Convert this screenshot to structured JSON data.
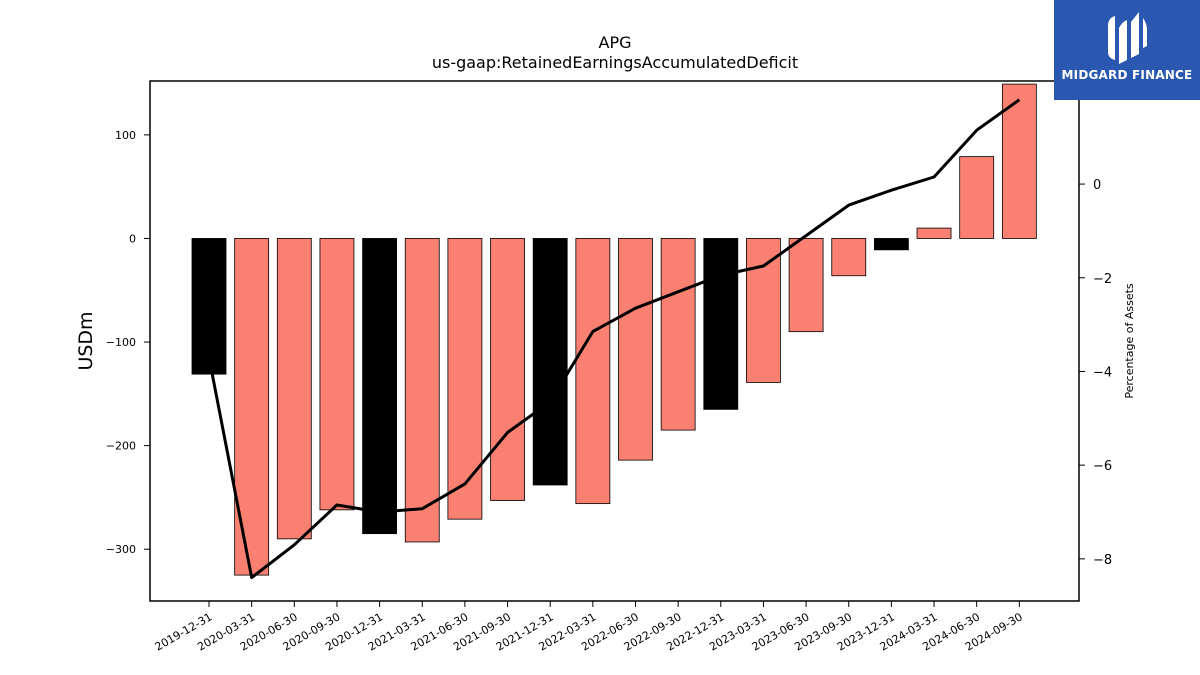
{
  "chart_data": {
    "type": "bar",
    "title": "APG",
    "subtitle": "us-gaap:RetainedEarningsAccumulatedDeficit",
    "ylabel": "USDm",
    "y2label": "Percentage of Assets",
    "ylim": [
      -350,
      152
    ],
    "y2lim": [
      -8.9,
      2.2
    ],
    "yticks": [
      100,
      0,
      -100,
      -200,
      -300
    ],
    "y2ticks": [
      0,
      -2,
      -4,
      -6,
      -8
    ],
    "categories": [
      "2019-12-31",
      "2020-03-31",
      "2020-06-30",
      "2020-09-30",
      "2020-12-31",
      "2021-03-31",
      "2021-06-30",
      "2021-09-30",
      "2021-12-31",
      "2022-03-31",
      "2022-06-30",
      "2022-09-30",
      "2022-12-31",
      "2023-03-31",
      "2023-06-30",
      "2023-09-30",
      "2023-12-31",
      "2024-03-31",
      "2024-06-30",
      "2024-09-30"
    ],
    "series": [
      {
        "kind": "bar",
        "values": [
          -131,
          -325,
          -290,
          -262,
          -285,
          -293,
          -271,
          -253,
          -238,
          -256,
          -214,
          -185,
          -165,
          -139,
          -90,
          -36,
          -11,
          10,
          79,
          149
        ],
        "colors": [
          "#000000",
          "#fa8072",
          "#fa8072",
          "#fa8072",
          "#000000",
          "#fa8072",
          "#fa8072",
          "#fa8072",
          "#000000",
          "#fa8072",
          "#fa8072",
          "#fa8072",
          "#000000",
          "#fa8072",
          "#fa8072",
          "#fa8072",
          "#000000",
          "#fa8072",
          "#fa8072",
          "#fa8072"
        ]
      },
      {
        "kind": "line",
        "axis": "right",
        "color": "#000000",
        "values": [
          -3.7,
          -8.4,
          -7.7,
          -6.85,
          -7.0,
          -6.93,
          -6.4,
          -5.3,
          -4.65,
          -3.15,
          -2.65,
          -2.3,
          -1.95,
          -1.75,
          -1.1,
          -0.45,
          -0.13,
          0.15,
          1.15,
          1.8
        ]
      }
    ],
    "grid": false,
    "legend": "none"
  },
  "logo": {
    "brand": "MIDGARD FINANCE",
    "color": "#2a58b0"
  }
}
